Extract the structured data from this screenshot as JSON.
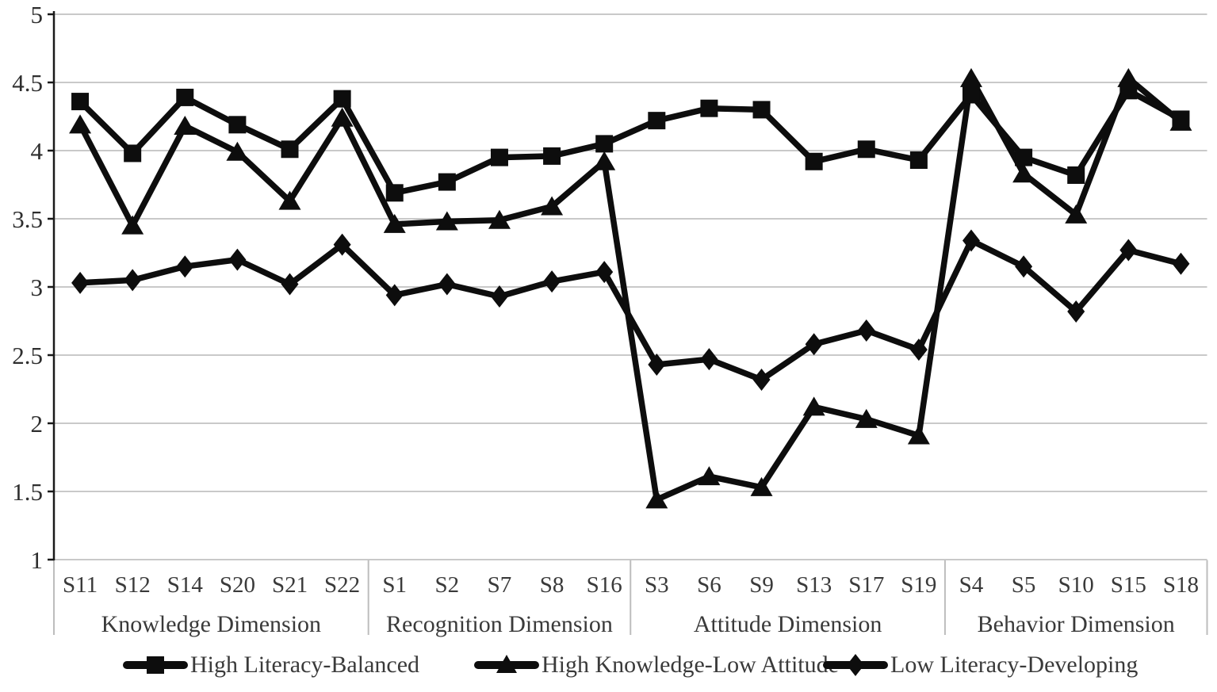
{
  "chart_data": {
    "type": "line",
    "title": "",
    "xlabel": "",
    "ylabel": "",
    "ylim": [
      1,
      5
    ],
    "yticks": [
      5,
      4.5,
      4,
      3.5,
      3,
      2.5,
      2,
      1.5,
      1
    ],
    "ytick_labels": [
      "5",
      "4.5",
      "4",
      "3.5",
      "3",
      "2.5",
      "2",
      "1.5",
      "1"
    ],
    "grid": true,
    "legend_position": "bottom",
    "categories": [
      "S11",
      "S12",
      "S14",
      "S20",
      "S21",
      "S22",
      "S1",
      "S2",
      "S7",
      "S8",
      "S16",
      "S3",
      "S6",
      "S9",
      "S13",
      "S17",
      "S19",
      "S4",
      "S5",
      "S10",
      "S15",
      "S18"
    ],
    "groups": [
      {
        "label": "Knowledge Dimension",
        "start": 0,
        "end": 5
      },
      {
        "label": "Recognition Dimension",
        "start": 6,
        "end": 10
      },
      {
        "label": "Attitude Dimension",
        "start": 11,
        "end": 16
      },
      {
        "label": "Behavior Dimension",
        "start": 17,
        "end": 21
      }
    ],
    "series": [
      {
        "name": "High Literacy-Balanced",
        "marker": "square",
        "values": [
          4.36,
          3.98,
          4.39,
          4.19,
          4.01,
          4.38,
          3.69,
          3.77,
          3.95,
          3.96,
          4.05,
          4.22,
          4.31,
          4.3,
          3.92,
          4.01,
          3.93,
          4.41,
          3.95,
          3.82,
          4.44,
          4.23
        ]
      },
      {
        "name": "High Knowledge-Low Attitude",
        "marker": "triangle",
        "values": [
          4.19,
          3.45,
          4.18,
          3.99,
          3.63,
          4.24,
          3.46,
          3.48,
          3.49,
          3.59,
          3.92,
          1.44,
          1.61,
          1.53,
          2.12,
          2.03,
          1.91,
          4.53,
          3.83,
          3.53,
          4.53,
          4.21
        ]
      },
      {
        "name": "Low Literacy-Developing",
        "marker": "diamond",
        "values": [
          3.03,
          3.05,
          3.15,
          3.2,
          3.02,
          3.31,
          2.94,
          3.02,
          2.93,
          3.04,
          3.11,
          2.43,
          2.47,
          2.32,
          2.58,
          2.68,
          2.54,
          3.34,
          3.15,
          2.82,
          3.27,
          3.17
        ]
      }
    ],
    "colors": {
      "series_line": "#0d0d0d",
      "gridline": "#c9c9c9",
      "axis": "#1a1a1a",
      "band_border": "#bdbdbd",
      "tick_text": "#2e2e2e",
      "label_text": "#3a3a3a",
      "background": "#ffffff"
    }
  }
}
